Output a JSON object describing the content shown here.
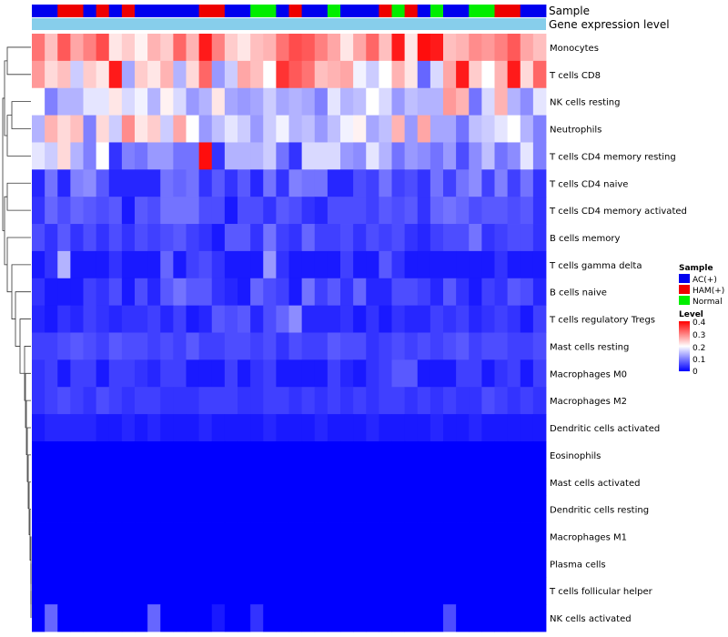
{
  "chart_data": {
    "type": "heatmap",
    "annotations": {
      "sample_label": "Sample",
      "expression_label": "Gene expression level"
    },
    "legend": {
      "sample": {
        "title": "Sample",
        "entries": [
          {
            "label": "AC(+)",
            "color": "#0000ee"
          },
          {
            "label": "HAM(+)",
            "color": "#ee0000"
          },
          {
            "label": "Normal",
            "color": "#00ee00"
          }
        ]
      },
      "level": {
        "title": "Level",
        "ticks": [
          "0.4",
          "0.3",
          "0.2",
          "0.1",
          "0"
        ],
        "range": [
          0,
          0.4
        ]
      }
    },
    "color_scale": {
      "low": "#0000ff",
      "mid": "#ffffff",
      "high": "#ff0000",
      "min": 0,
      "mid_value": 0.2,
      "max": 0.4
    },
    "expression_bar_color": "#87ceeb",
    "sample_groups": [
      "AC(+)",
      "AC(+)",
      "HAM(+)",
      "HAM(+)",
      "AC(+)",
      "HAM(+)",
      "AC(+)",
      "HAM(+)",
      "AC(+)",
      "AC(+)",
      "AC(+)",
      "AC(+)",
      "AC(+)",
      "HAM(+)",
      "HAM(+)",
      "AC(+)",
      "AC(+)",
      "Normal",
      "Normal",
      "AC(+)",
      "HAM(+)",
      "AC(+)",
      "AC(+)",
      "Normal",
      "AC(+)",
      "AC(+)",
      "AC(+)",
      "HAM(+)",
      "Normal",
      "HAM(+)",
      "AC(+)",
      "Normal",
      "AC(+)",
      "AC(+)",
      "Normal",
      "Normal",
      "HAM(+)",
      "HAM(+)",
      "AC(+)",
      "AC(+)"
    ],
    "rows": [
      {
        "name": "Monocytes",
        "values": [
          0.31,
          0.25,
          0.33,
          0.27,
          0.3,
          0.34,
          0.22,
          0.24,
          0.21,
          0.26,
          0.24,
          0.32,
          0.26,
          0.38,
          0.3,
          0.24,
          0.22,
          0.25,
          0.26,
          0.31,
          0.34,
          0.33,
          0.3,
          0.27,
          0.22,
          0.27,
          0.32,
          0.25,
          0.38,
          0.22,
          0.39,
          0.38,
          0.25,
          0.26,
          0.29,
          0.28,
          0.3,
          0.33,
          0.27,
          0.25
        ]
      },
      {
        "name": "T cells CD8",
        "values": [
          0.28,
          0.23,
          0.25,
          0.16,
          0.24,
          0.22,
          0.38,
          0.13,
          0.24,
          0.22,
          0.26,
          0.14,
          0.23,
          0.32,
          0.12,
          0.16,
          0.27,
          0.25,
          0.2,
          0.36,
          0.33,
          0.31,
          0.25,
          0.26,
          0.27,
          0.19,
          0.16,
          0.2,
          0.26,
          0.22,
          0.08,
          0.17,
          0.27,
          0.38,
          0.24,
          0.2,
          0.26,
          0.38,
          0.23,
          0.32
        ]
      },
      {
        "name": "NK cells resting",
        "values": [
          0.2,
          0.1,
          0.14,
          0.14,
          0.18,
          0.18,
          0.22,
          0.17,
          0.19,
          0.14,
          0.21,
          0.17,
          0.12,
          0.14,
          0.22,
          0.13,
          0.12,
          0.13,
          0.16,
          0.13,
          0.14,
          0.13,
          0.1,
          0.18,
          0.14,
          0.15,
          0.2,
          0.17,
          0.12,
          0.15,
          0.14,
          0.14,
          0.28,
          0.26,
          0.09,
          0.17,
          0.26,
          0.14,
          0.11,
          0.18
        ]
      },
      {
        "name": "Neutrophils",
        "values": [
          0.14,
          0.26,
          0.23,
          0.25,
          0.1,
          0.23,
          0.16,
          0.29,
          0.22,
          0.24,
          0.16,
          0.27,
          0.2,
          0.12,
          0.15,
          0.18,
          0.16,
          0.12,
          0.16,
          0.19,
          0.14,
          0.15,
          0.12,
          0.15,
          0.19,
          0.21,
          0.13,
          0.15,
          0.26,
          0.12,
          0.27,
          0.13,
          0.13,
          0.09,
          0.15,
          0.16,
          0.18,
          0.2,
          0.14,
          0.1
        ]
      },
      {
        "name": "T cells CD4 memory resting",
        "values": [
          0.18,
          0.16,
          0.23,
          0.14,
          0.1,
          0.2,
          0.04,
          0.1,
          0.09,
          0.12,
          0.12,
          0.09,
          0.09,
          0.39,
          0.04,
          0.14,
          0.14,
          0.14,
          0.16,
          0.09,
          0.04,
          0.17,
          0.17,
          0.17,
          0.12,
          0.11,
          0.18,
          0.14,
          0.09,
          0.12,
          0.11,
          0.09,
          0.12,
          0.06,
          0.11,
          0.15,
          0.09,
          0.11,
          0.18,
          0.1
        ]
      },
      {
        "name": "T cells CD4 naive",
        "values": [
          0.03,
          0.09,
          0.03,
          0.1,
          0.11,
          0.07,
          0.03,
          0.03,
          0.03,
          0.03,
          0.09,
          0.08,
          0.09,
          0.04,
          0.07,
          0.04,
          0.07,
          0.03,
          0.09,
          0.04,
          0.1,
          0.09,
          0.09,
          0.03,
          0.03,
          0.06,
          0.05,
          0.09,
          0.05,
          0.06,
          0.04,
          0.09,
          0.05,
          0.09,
          0.11,
          0.05,
          0.1,
          0.05,
          0.09,
          0.04
        ]
      },
      {
        "name": "T cells CD4 memory activated",
        "values": [
          0.04,
          0.08,
          0.06,
          0.08,
          0.07,
          0.06,
          0.07,
          0.02,
          0.07,
          0.06,
          0.09,
          0.09,
          0.09,
          0.06,
          0.06,
          0.02,
          0.06,
          0.06,
          0.04,
          0.07,
          0.06,
          0.04,
          0.03,
          0.06,
          0.06,
          0.06,
          0.05,
          0.07,
          0.06,
          0.07,
          0.04,
          0.08,
          0.09,
          0.08,
          0.06,
          0.07,
          0.07,
          0.06,
          0.07,
          0.04
        ]
      },
      {
        "name": "B cells memory",
        "values": [
          0.06,
          0.04,
          0.07,
          0.04,
          0.06,
          0.04,
          0.06,
          0.04,
          0.06,
          0.05,
          0.06,
          0.07,
          0.05,
          0.04,
          0.02,
          0.07,
          0.07,
          0.04,
          0.09,
          0.05,
          0.04,
          0.08,
          0.05,
          0.05,
          0.06,
          0.04,
          0.06,
          0.05,
          0.06,
          0.04,
          0.03,
          0.05,
          0.06,
          0.06,
          0.09,
          0.04,
          0.05,
          0.06,
          0.06,
          0.04
        ]
      },
      {
        "name": "T cells gamma delta",
        "values": [
          0.02,
          0.04,
          0.14,
          0.02,
          0.02,
          0.02,
          0.04,
          0.02,
          0.02,
          0.02,
          0.08,
          0.02,
          0.05,
          0.06,
          0.04,
          0.02,
          0.02,
          0.02,
          0.12,
          0.04,
          0.02,
          0.02,
          0.02,
          0.02,
          0.05,
          0.02,
          0.02,
          0.07,
          0.04,
          0.02,
          0.02,
          0.02,
          0.02,
          0.02,
          0.02,
          0.02,
          0.04,
          0.02,
          0.02,
          0.02
        ]
      },
      {
        "name": "B cells naive",
        "values": [
          0.04,
          0.02,
          0.02,
          0.02,
          0.05,
          0.04,
          0.06,
          0.02,
          0.06,
          0.03,
          0.07,
          0.09,
          0.07,
          0.07,
          0.04,
          0.03,
          0.02,
          0.08,
          0.06,
          0.05,
          0.02,
          0.09,
          0.05,
          0.07,
          0.04,
          0.08,
          0.03,
          0.03,
          0.06,
          0.06,
          0.05,
          0.03,
          0.07,
          0.04,
          0.02,
          0.05,
          0.04,
          0.07,
          0.06,
          0.03
        ]
      },
      {
        "name": "T cells regulatory  Tregs",
        "values": [
          0.03,
          0.02,
          0.04,
          0.03,
          0.05,
          0.04,
          0.03,
          0.04,
          0.04,
          0.05,
          0.03,
          0.05,
          0.02,
          0.03,
          0.07,
          0.06,
          0.07,
          0.03,
          0.06,
          0.08,
          0.11,
          0.03,
          0.03,
          0.03,
          0.04,
          0.02,
          0.04,
          0.02,
          0.04,
          0.03,
          0.03,
          0.05,
          0.04,
          0.05,
          0.03,
          0.04,
          0.05,
          0.04,
          0.02,
          0.05
        ]
      },
      {
        "name": "Mast cells resting",
        "values": [
          0.05,
          0.05,
          0.06,
          0.07,
          0.06,
          0.05,
          0.07,
          0.06,
          0.06,
          0.05,
          0.06,
          0.05,
          0.07,
          0.05,
          0.05,
          0.06,
          0.06,
          0.05,
          0.06,
          0.04,
          0.06,
          0.05,
          0.05,
          0.07,
          0.06,
          0.06,
          0.04,
          0.05,
          0.06,
          0.05,
          0.06,
          0.05,
          0.06,
          0.07,
          0.05,
          0.06,
          0.06,
          0.05,
          0.05,
          0.06
        ]
      },
      {
        "name": "Macrophages M0",
        "values": [
          0.04,
          0.05,
          0.02,
          0.05,
          0.05,
          0.02,
          0.05,
          0.05,
          0.04,
          0.03,
          0.05,
          0.05,
          0.02,
          0.02,
          0.02,
          0.05,
          0.02,
          0.04,
          0.05,
          0.02,
          0.02,
          0.02,
          0.02,
          0.05,
          0.03,
          0.02,
          0.04,
          0.05,
          0.07,
          0.07,
          0.02,
          0.02,
          0.02,
          0.05,
          0.05,
          0.02,
          0.04,
          0.05,
          0.02,
          0.05
        ]
      },
      {
        "name": "Macrophages M2",
        "values": [
          0.04,
          0.05,
          0.06,
          0.05,
          0.04,
          0.06,
          0.05,
          0.04,
          0.05,
          0.05,
          0.04,
          0.04,
          0.04,
          0.05,
          0.05,
          0.05,
          0.04,
          0.04,
          0.05,
          0.05,
          0.04,
          0.05,
          0.04,
          0.05,
          0.04,
          0.05,
          0.04,
          0.05,
          0.05,
          0.04,
          0.05,
          0.04,
          0.05,
          0.04,
          0.04,
          0.06,
          0.05,
          0.04,
          0.05,
          0.04
        ]
      },
      {
        "name": "Dendritic cells activated",
        "values": [
          0.02,
          0.03,
          0.03,
          0.03,
          0.03,
          0.02,
          0.02,
          0.03,
          0.02,
          0.03,
          0.02,
          0.02,
          0.02,
          0.03,
          0.02,
          0.02,
          0.02,
          0.02,
          0.03,
          0.02,
          0.02,
          0.02,
          0.03,
          0.02,
          0.02,
          0.02,
          0.03,
          0.02,
          0.02,
          0.02,
          0.02,
          0.03,
          0.02,
          0.02,
          0.03,
          0.02,
          0.02,
          0.02,
          0.02,
          0.02
        ]
      },
      {
        "name": "Eosinophils",
        "values": [
          0,
          0,
          0,
          0,
          0,
          0,
          0,
          0,
          0,
          0,
          0,
          0,
          0,
          0,
          0,
          0,
          0,
          0,
          0,
          0,
          0,
          0,
          0,
          0,
          0,
          0,
          0,
          0,
          0,
          0,
          0,
          0,
          0,
          0,
          0,
          0,
          0,
          0,
          0,
          0
        ]
      },
      {
        "name": "Mast cells activated",
        "values": [
          0,
          0,
          0,
          0,
          0,
          0,
          0,
          0,
          0,
          0,
          0,
          0,
          0,
          0,
          0,
          0,
          0,
          0,
          0,
          0,
          0,
          0,
          0,
          0,
          0,
          0,
          0,
          0,
          0,
          0,
          0,
          0,
          0,
          0,
          0,
          0,
          0,
          0,
          0,
          0
        ]
      },
      {
        "name": "Dendritic cells resting",
        "values": [
          0,
          0,
          0,
          0,
          0,
          0,
          0,
          0,
          0,
          0,
          0,
          0,
          0,
          0,
          0,
          0,
          0,
          0,
          0,
          0,
          0,
          0,
          0,
          0,
          0,
          0,
          0,
          0,
          0,
          0,
          0,
          0,
          0,
          0,
          0,
          0,
          0,
          0,
          0,
          0
        ]
      },
      {
        "name": "Macrophages M1",
        "values": [
          0,
          0,
          0,
          0,
          0,
          0,
          0,
          0,
          0,
          0,
          0,
          0,
          0,
          0,
          0,
          0,
          0,
          0,
          0,
          0,
          0,
          0,
          0,
          0,
          0,
          0,
          0,
          0,
          0,
          0,
          0,
          0,
          0,
          0,
          0,
          0,
          0,
          0,
          0,
          0
        ]
      },
      {
        "name": "Plasma cells",
        "values": [
          0,
          0,
          0,
          0,
          0,
          0,
          0,
          0,
          0,
          0,
          0,
          0,
          0,
          0,
          0,
          0,
          0,
          0,
          0,
          0,
          0,
          0,
          0,
          0,
          0,
          0,
          0,
          0,
          0,
          0,
          0,
          0,
          0,
          0,
          0,
          0,
          0,
          0,
          0,
          0
        ]
      },
      {
        "name": "T cells follicular helper",
        "values": [
          0,
          0,
          0,
          0,
          0,
          0,
          0,
          0,
          0,
          0,
          0,
          0,
          0,
          0,
          0,
          0,
          0,
          0,
          0,
          0,
          0,
          0,
          0,
          0,
          0,
          0,
          0,
          0,
          0,
          0,
          0,
          0,
          0,
          0,
          0,
          0,
          0,
          0,
          0,
          0
        ]
      },
      {
        "name": "NK cells activated",
        "values": [
          0,
          0.08,
          0,
          0,
          0,
          0,
          0,
          0,
          0,
          0.08,
          0,
          0,
          0,
          0,
          0.02,
          0,
          0,
          0.04,
          0,
          0,
          0,
          0,
          0,
          0,
          0,
          0,
          0,
          0,
          0,
          0,
          0,
          0,
          0.06,
          0,
          0,
          0,
          0,
          0,
          0,
          0
        ]
      }
    ]
  }
}
